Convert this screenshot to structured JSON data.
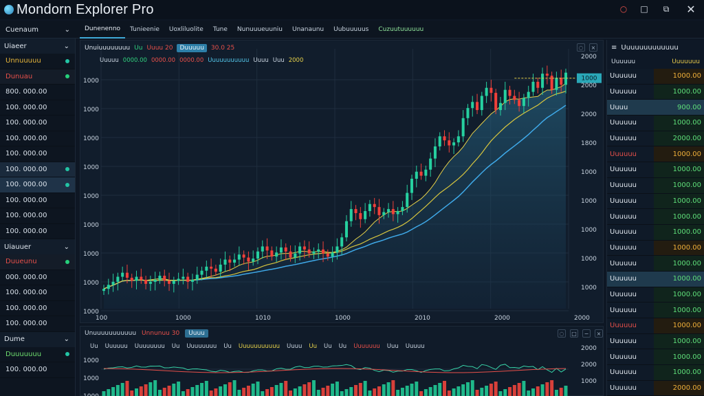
{
  "app": {
    "title": "Mondorn Explorer Pro"
  },
  "menu": {
    "left_label": "Cuenaum",
    "tabs": [
      "Dunenenno",
      "Tunieenie",
      "Uoxliluolite",
      "Tune",
      "Nunuuueuuniu",
      "Unanaunu",
      "Uubuuuuus",
      "Cuzuutuuuuuu"
    ]
  },
  "sidebar": {
    "section1": "Uiaeer",
    "section1_rows": [
      {
        "label": "Unnuuuuu",
        "style": "yellow"
      },
      {
        "label": "Dunuau",
        "style": "red"
      },
      {
        "label": "800. 000.00",
        "style": ""
      },
      {
        "label": "100. 000.00",
        "style": ""
      },
      {
        "label": "100. 000.00",
        "style": ""
      },
      {
        "label": "100. 000.00",
        "style": ""
      },
      {
        "label": "100. 000.00",
        "style": ""
      },
      {
        "label": "100. 000.00",
        "style": "hl"
      },
      {
        "label": "100. 000.00",
        "style": "hl2"
      },
      {
        "label": "100. 000.00",
        "style": ""
      },
      {
        "label": "100. 000.00",
        "style": ""
      },
      {
        "label": "100. 000.00",
        "style": ""
      }
    ],
    "section2": "Uiauuer",
    "section2_rows": [
      {
        "label": "Duueunu",
        "style": "red"
      },
      {
        "label": "000. 000.00",
        "style": ""
      },
      {
        "label": "100. 000.00",
        "style": ""
      },
      {
        "label": "100. 000.00",
        "style": ""
      },
      {
        "label": "100. 000.00",
        "style": ""
      }
    ],
    "section3": "Dume",
    "section3_rows": [
      {
        "label": "Duuuuuuu",
        "style": "green"
      },
      {
        "label": "100. 000.00",
        "style": ""
      }
    ]
  },
  "chart_header": {
    "symbol": "Unuiuuuuuuuu",
    "change_green": "Uu",
    "change_red": "Uuuu 20",
    "badge": "Duuuuu",
    "pct": "30.0 25",
    "sub": [
      "Uuuuu",
      "0000.00",
      "0000.00",
      "0000.00",
      "Uuuuuuuuuuu",
      "Uuuu",
      "Uuu",
      "2000"
    ]
  },
  "chart_data": {
    "type": "candlestick",
    "y_ticks": [
      "1000",
      "1000",
      "1000",
      "1000",
      "1000",
      "1000",
      "1000",
      "1000",
      "1000"
    ],
    "y_ticks_right": [
      "2000",
      "2000",
      "2000",
      "1800",
      "1000",
      "1000",
      "1000",
      "1000",
      "1000"
    ],
    "x_ticks": [
      "100",
      "1000",
      "1010",
      "1000",
      "2010",
      "2000",
      "2000"
    ],
    "current_price_badge": "1000",
    "grid": true,
    "candles_close": [
      1010,
      1050,
      1080,
      1130,
      1170,
      1120,
      1090,
      1130,
      1100,
      1060,
      1080,
      1100,
      1140,
      1090,
      1060,
      1090,
      1110,
      1130,
      1080,
      1100,
      1150,
      1190,
      1230,
      1210,
      1180,
      1250,
      1300,
      1270,
      1300,
      1350,
      1320,
      1280,
      1310,
      1380,
      1430,
      1390,
      1330,
      1370,
      1420,
      1380,
      1320,
      1360,
      1430,
      1400,
      1360,
      1380,
      1400,
      1360,
      1330,
      1370,
      1430,
      1520,
      1680,
      1800,
      1760,
      1700,
      1780,
      1850,
      1820,
      1740,
      1770,
      1800,
      1750,
      1780,
      1820,
      1960,
      2100,
      2170,
      2130,
      2190,
      2300,
      2420,
      2520,
      2480,
      2430,
      2460,
      2520,
      2700,
      2800,
      2860,
      2780,
      2920,
      3000,
      2950,
      2780,
      2850,
      2980,
      2920,
      2880,
      2820,
      2900,
      2960,
      3060,
      3000,
      3140,
      3120,
      2980,
      3100,
      3030,
      3150
    ],
    "ma_fast_color": "#e6d14a",
    "ma_slow_color": "#3fa9e8"
  },
  "lower_panel": {
    "title": "Unuuuuuuuuuuu",
    "red": "Unnunuu 30",
    "badge": "Uuuu",
    "sub": [
      "Uu",
      "Uuuuuu",
      "Uuuuuuuu",
      "Uu",
      "Uuuuuuuu",
      "Uu",
      "Uuuuuuuuuuu",
      "Uuuu",
      "Uu",
      "Uu",
      "Uu",
      "Uuuuuuu",
      "Uuu",
      "Uuuuu"
    ],
    "y_ticks": [
      "1000",
      "1000",
      "1000"
    ],
    "y_ticks_right": [
      "2000",
      "2000",
      "1000"
    ]
  },
  "watchlist": {
    "title": "Uuuuuuuuuuuuu",
    "col_left": "Uuuuuu",
    "col_right": "Uuuuuuu",
    "rows": [
      {
        "name": "Uuuuuu",
        "value": "1000.00",
        "style": "y"
      },
      {
        "name": "Uuuuuu",
        "value": "1000.00",
        "style": ""
      },
      {
        "name": "Uuuu",
        "value": "900.00",
        "style": "",
        "selected": true
      },
      {
        "name": "Uuuuuu",
        "value": "1000.00",
        "style": ""
      },
      {
        "name": "Uuuuuu",
        "value": "2000.00",
        "style": ""
      },
      {
        "name": "Uuuuuu",
        "value": "1000.00",
        "style": "y",
        "name_red": true
      },
      {
        "name": "Uuuuuu",
        "value": "1000.00",
        "style": ""
      },
      {
        "name": "Uuuuuu",
        "value": "1000.00",
        "style": ""
      },
      {
        "name": "Uuuuuu",
        "value": "1000.00",
        "style": ""
      },
      {
        "name": "Uuuuuu",
        "value": "1000.00",
        "style": ""
      },
      {
        "name": "Uuuuuu",
        "value": "1000.00",
        "style": ""
      },
      {
        "name": "Uuuuuu",
        "value": "1000.00",
        "style": "y"
      },
      {
        "name": "Uuuuuu",
        "value": "1000.00",
        "style": ""
      },
      {
        "name": "Uuuuuu",
        "value": "1000.00",
        "style": "",
        "selected": true
      },
      {
        "name": "Uuuuuu",
        "value": "1000.00",
        "style": ""
      },
      {
        "name": "Uuuuuu",
        "value": "1000.00",
        "style": ""
      },
      {
        "name": "Uuuuuu",
        "value": "1000.00",
        "style": "y",
        "name_red": true
      },
      {
        "name": "Uuuuuu",
        "value": "1000.00",
        "style": ""
      },
      {
        "name": "Uuuuuu",
        "value": "1000.00",
        "style": ""
      },
      {
        "name": "Uuuuuu",
        "value": "1000.00",
        "style": ""
      },
      {
        "name": "Uuuuuu",
        "value": "2000.00",
        "style": "y"
      }
    ]
  }
}
